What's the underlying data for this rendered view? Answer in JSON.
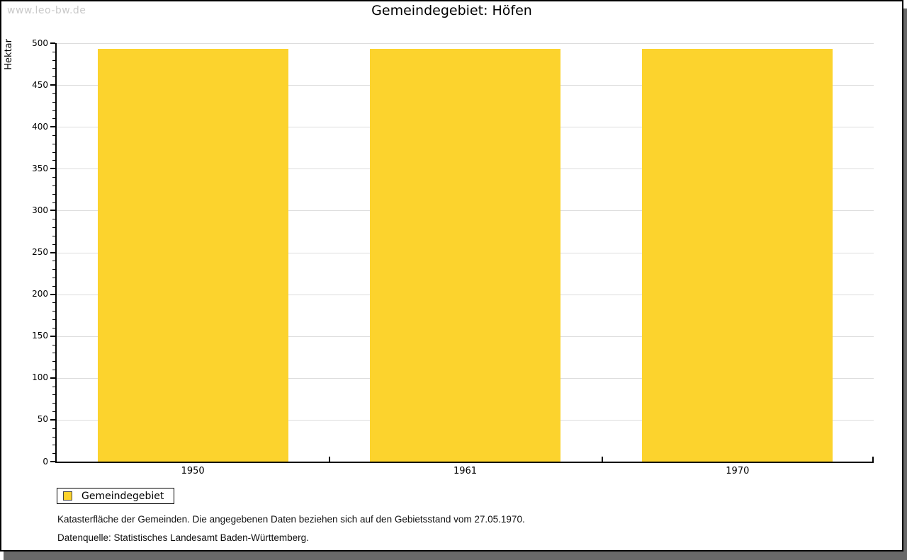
{
  "watermark": "www.leo-bw.de",
  "notes": [
    "Katasterfläche der Gemeinden. Die angegebenen Daten beziehen sich auf den Gebietsstand vom 27.05.1970.",
    "Datenquelle: Statistisches Landesamt Baden-Württemberg."
  ],
  "legend": {
    "items": [
      {
        "label": "Gemeindegebiet",
        "color": "#FCD32D"
      }
    ]
  },
  "chart_data": {
    "type": "bar",
    "title": "Gemeindegebiet: Höfen",
    "categories": [
      "1950",
      "1961",
      "1970"
    ],
    "series": [
      {
        "name": "Gemeindegebiet",
        "values": [
          493,
          493,
          493
        ],
        "color": "#FCD32D"
      }
    ],
    "xlabel": "",
    "ylabel": "Hektar",
    "ylim": [
      0,
      500
    ],
    "y_major_step": 50,
    "y_minor_step": 10,
    "grid": true,
    "legend_position": "bottom-left",
    "colors": {
      "bar": "#FCD32D",
      "grid": "#DDDDDD",
      "axis": "#000000",
      "watermark": "#C9C9C9",
      "frame_shadow": "#696969"
    }
  }
}
